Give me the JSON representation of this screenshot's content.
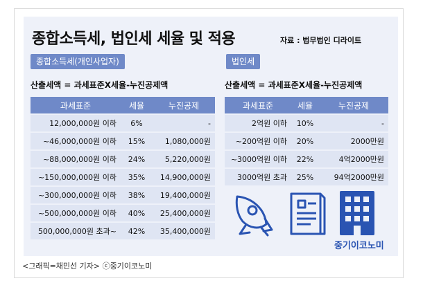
{
  "title": "종합소득세, 법인세 세율 및 적용",
  "source": "자료 : 법무법인 디라이트",
  "left": {
    "tag": "종합소득세(개인사업자)",
    "formula": "산출세액 = 과세표준X세율-누진공제액",
    "headers": [
      "과세표준",
      "세율",
      "누진공제"
    ],
    "rows": [
      [
        "12,000,000원 이하",
        "6%",
        "-"
      ],
      [
        "~46,000,000원 이하",
        "15%",
        "1,080,000원"
      ],
      [
        "~88,000,000원 이하",
        "24%",
        "5,220,000원"
      ],
      [
        "~150,000,000원 이하",
        "35%",
        "14,900,000원"
      ],
      [
        "~300,000,000원 이하",
        "38%",
        "19,400,000원"
      ],
      [
        "~500,000,000원 이하",
        "40%",
        "25,400,000원"
      ],
      [
        "500,000,000원 초과~",
        "42%",
        "35,400,000원"
      ]
    ]
  },
  "right": {
    "tag": "법인세",
    "formula": "산출세액 = 과세표준X세율-누진공제액",
    "headers": [
      "과세표준",
      "세율",
      "누진공제"
    ],
    "rows": [
      [
        "2억원 이하",
        "10%",
        "-"
      ],
      [
        "~200억원 이하",
        "20%",
        "2000만원"
      ],
      [
        "~3000억원 이하",
        "22%",
        "4억2000만원"
      ],
      [
        "3000억원 초과",
        "25%",
        "94억2000만원"
      ]
    ]
  },
  "icons": [
    "rocket-icon",
    "document-icon",
    "building-icon"
  ],
  "brand": "중기이코노미",
  "caption": "<그래픽=채민선 기자>   ⓒ중기이코노미",
  "colors": {
    "accent": "#6f89c8",
    "row": "#dfe5f3",
    "panel": "#eef1f9",
    "icon": "#2a54b2"
  }
}
